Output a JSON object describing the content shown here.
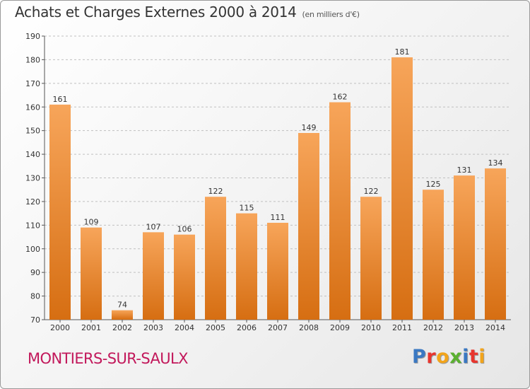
{
  "title": "Achats et Charges Externes 2000 à 2014",
  "unit_label": "(en milliers d'€)",
  "place": "MONTIERS-SUR-SAULX",
  "logo": {
    "letters": [
      {
        "ch": "P",
        "color": "#3a78c2"
      },
      {
        "ch": "r",
        "color": "#e8352e"
      },
      {
        "ch": "o",
        "color": "#f2a41b"
      },
      {
        "ch": "x",
        "color": "#5ab030"
      },
      {
        "ch": "i",
        "color": "#3a78c2"
      },
      {
        "ch": "t",
        "color": "#e8352e"
      },
      {
        "ch": "i",
        "color": "#f2a41b"
      }
    ]
  },
  "colors": {
    "bar_top": "#f7a55a",
    "bar_bottom": "#d66e12",
    "place": "#c2185b",
    "grid": "#c0c0c0",
    "axis": "#555555"
  },
  "chart_data": {
    "type": "bar",
    "categories": [
      "2000",
      "2001",
      "2002",
      "2003",
      "2004",
      "2005",
      "2006",
      "2007",
      "2008",
      "2009",
      "2010",
      "2011",
      "2012",
      "2013",
      "2014"
    ],
    "values": [
      161,
      109,
      74,
      107,
      106,
      122,
      115,
      111,
      149,
      162,
      122,
      181,
      125,
      131,
      134
    ],
    "ylim": [
      70,
      190
    ],
    "yticks": [
      70,
      80,
      90,
      100,
      110,
      120,
      130,
      140,
      150,
      160,
      170,
      180,
      190
    ],
    "grid": true,
    "xlabel": "",
    "ylabel": ""
  }
}
